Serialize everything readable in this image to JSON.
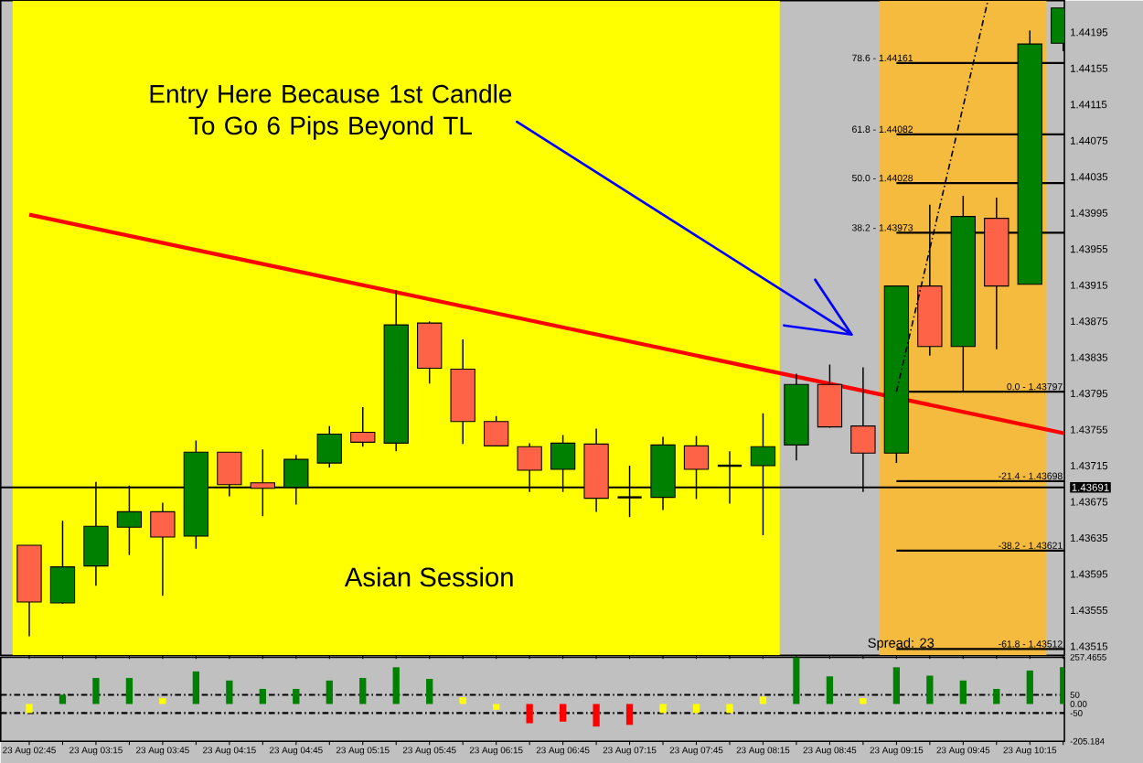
{
  "chart_data": [
    {
      "type": "candlestick",
      "categories": [
        "23 Aug 02:45",
        null,
        "23 Aug 03:15",
        null,
        "23 Aug 03:45",
        null,
        "23 Aug 04:15",
        null,
        "23 Aug 04:45",
        null,
        "23 Aug 05:15",
        null,
        "23 Aug 05:45",
        null,
        "23 Aug 06:15",
        null,
        "23 Aug 06:45",
        null,
        "23 Aug 07:15",
        null,
        "23 Aug 07:45",
        null,
        "23 Aug 08:15",
        null,
        "23 Aug 08:45",
        null,
        "23 Aug 09:15",
        null,
        "23 Aug 09:45",
        null,
        "23 Aug 10:15",
        null
      ],
      "ohlc": [
        [
          1.43627,
          1.43627,
          1.43526,
          1.43564
        ],
        [
          1.43563,
          1.43654,
          1.43562,
          1.43603
        ],
        [
          1.43604,
          1.43697,
          1.43582,
          1.43648
        ],
        [
          1.43647,
          1.43693,
          1.43616,
          1.43664
        ],
        [
          1.43664,
          1.43674,
          1.43571,
          1.43636
        ],
        [
          1.43637,
          1.43743,
          1.43623,
          1.4373
        ],
        [
          1.4373,
          1.4373,
          1.43681,
          1.43694
        ],
        [
          1.43696,
          1.43733,
          1.43659,
          1.4369
        ],
        [
          1.43691,
          1.43727,
          1.43672,
          1.43722
        ],
        [
          1.43718,
          1.43759,
          1.43713,
          1.4375
        ],
        [
          1.43752,
          1.4378,
          1.43736,
          1.43741
        ],
        [
          1.4374,
          1.43909,
          1.43731,
          1.43871
        ],
        [
          1.43873,
          1.43875,
          1.43806,
          1.43823
        ],
        [
          1.43822,
          1.43855,
          1.43739,
          1.43764
        ],
        [
          1.43764,
          1.4377,
          1.43737,
          1.43737
        ],
        [
          1.43736,
          1.4374,
          1.43686,
          1.4371
        ],
        [
          1.43711,
          1.43749,
          1.43686,
          1.4374
        ],
        [
          1.43739,
          1.43756,
          1.43664,
          1.43679
        ],
        [
          1.4368,
          1.43715,
          1.43658,
          1.4368
        ],
        [
          1.4368,
          1.43747,
          1.43666,
          1.43738
        ],
        [
          1.43737,
          1.43748,
          1.43678,
          1.43711
        ],
        [
          1.43715,
          1.43731,
          1.43673,
          1.43715
        ],
        [
          1.43715,
          1.43773,
          1.43638,
          1.43736
        ],
        [
          1.43738,
          1.43817,
          1.43721,
          1.43805
        ],
        [
          1.43805,
          1.43827,
          1.43757,
          1.43758
        ],
        [
          1.43759,
          1.43824,
          1.43686,
          1.43729
        ],
        [
          1.43729,
          1.43914,
          1.43718,
          1.43914
        ],
        [
          1.43914,
          1.44004,
          1.43837,
          1.43847
        ],
        [
          1.43847,
          1.44014,
          1.43798,
          1.43991
        ],
        [
          1.43989,
          1.44012,
          1.43844,
          1.43914
        ],
        [
          1.43916,
          1.44197,
          1.43916,
          1.44182
        ],
        [
          1.44183,
          1.44222,
          1.44174,
          1.44222
        ]
      ],
      "colors": [
        "#ff6347",
        "#008000",
        "#008000",
        "#008000",
        "#ff6347",
        "#008000",
        "#ff6347",
        "#ff6347",
        "#008000",
        "#008000",
        "#ff6347",
        "#008000",
        "#ff6347",
        "#ff6347",
        "#ff6347",
        "#ff6347",
        "#008000",
        "#ff6347",
        "#000000",
        "#008000",
        "#ff6347",
        "#000000",
        "#008000",
        "#008000",
        "#ff6347",
        "#ff6347",
        "#008000",
        "#ff6347",
        "#008000",
        "#ff6347",
        "#008000",
        "#008000"
      ],
      "ylim": [
        1.43505,
        1.4423
      ],
      "yticks": [
        1.43515,
        1.43555,
        1.43595,
        1.43635,
        1.43675,
        1.43715,
        1.43755,
        1.43795,
        1.43835,
        1.43875,
        1.43915,
        1.43955,
        1.43995,
        1.44035,
        1.44075,
        1.44115,
        1.44155,
        1.44195,
        {
          "value": 1.43691,
          "label": "1.43691"
        }
      ],
      "tick_labels": "y",
      "series": [
        {
          "type": "line",
          "color": "#ff0000",
          "x": [
            "23 Aug 02:45",
            "23 Aug 10:15"
          ],
          "values": [
            1.43993,
            1.43759
          ]
        },
        {
          "type": "line",
          "color": "#000000",
          "line_style": "dashed",
          "x": [
            "23 Aug 09:15",
            "23 Aug 09:45"
          ],
          "values": [
            1.43797,
            1.44113
          ]
        }
      ],
      "bands": [
        {
          "axis": "x",
          "from": "23 Aug 02:45",
          "to": "23 Aug 08:15",
          "label": "Asian Session",
          "color": "#ffff00"
        },
        {
          "axis": "x",
          "from": "23 Aug 09:15",
          "to": "23 Aug 10:15",
          "color": "#f5bb3f"
        }
      ],
      "ref_lines": [
        {
          "axis": "y",
          "value": 1.43691,
          "color": "#000000"
        },
        {
          "axis": "y",
          "value": 1.44161,
          "color": "#000000"
        },
        {
          "axis": "y",
          "value": 1.44082,
          "color": "#000000"
        },
        {
          "axis": "y",
          "value": 1.44028,
          "color": "#000000"
        },
        {
          "axis": "y",
          "value": 1.43973,
          "color": "#000000"
        },
        {
          "axis": "y",
          "value": 1.43797,
          "color": "#000000"
        },
        {
          "axis": "y",
          "value": 1.43698,
          "color": "#000000"
        },
        {
          "axis": "y",
          "value": 1.43621,
          "color": "#000000"
        },
        {
          "axis": "y",
          "value": 1.43512,
          "color": "#000000"
        }
      ],
      "annotations": [
        "Entry Here Because 1st Candle To Go 6 Pips Beyond TL",
        "Spread: 23",
        {
          "text": "78.6 - 1.44161",
          "x": "23 Aug 09:15",
          "y": 1.44161
        },
        {
          "text": "61.8 - 1.44082",
          "x": "23 Aug 09:15",
          "y": 1.44082
        },
        {
          "text": "50.0 - 1.44028",
          "x": "23 Aug 09:15",
          "y": 1.44028
        },
        {
          "text": "38.2 - 1.43973",
          "x": "23 Aug 09:15",
          "y": 1.43973
        },
        {
          "text": "0.0 - 1.43797",
          "y": 1.43797
        },
        {
          "text": "-21.4 - 1.43698",
          "y": 1.43698
        },
        {
          "text": "-38.2 - 1.43621",
          "y": 1.43621
        },
        {
          "text": "-61.8 - 1.43512",
          "y": 1.43512
        }
      ]
    },
    {
      "type": "bar",
      "categories": [
        "23 Aug 02:45",
        null,
        "23 Aug 03:15",
        null,
        "23 Aug 03:45",
        null,
        "23 Aug 04:15",
        null,
        "23 Aug 04:45",
        null,
        "23 Aug 05:15",
        null,
        "23 Aug 05:45",
        null,
        "23 Aug 06:15",
        null,
        "23 Aug 06:45",
        null,
        "23 Aug 07:15",
        null,
        "23 Aug 07:45",
        null,
        "23 Aug 08:15",
        null,
        "23 Aug 08:45",
        null,
        "23 Aug 09:15",
        null,
        "23 Aug 09:45",
        null,
        "23 Aug 10:15",
        null
      ],
      "values": [
        -50,
        51,
        143,
        143,
        32,
        179,
        129,
        83,
        83,
        129,
        143,
        202,
        138,
        37,
        -32,
        -106,
        -97,
        -124,
        -115,
        -50,
        -50,
        -50,
        41,
        257,
        152,
        32,
        202,
        156,
        129,
        83,
        184,
        202
      ],
      "colors": [
        "#ffff00",
        "#008000",
        "#008000",
        "#008000",
        "#ffff00",
        "#008000",
        "#008000",
        "#008000",
        "#008000",
        "#008000",
        "#008000",
        "#008000",
        "#008000",
        "#ffff00",
        "#ffff00",
        "#ff0000",
        "#ff0000",
        "#ff0000",
        "#ff0000",
        "#ffff00",
        "#ffff00",
        "#ffff00",
        "#ffff00",
        "#008000",
        "#008000",
        "#ffff00",
        "#008000",
        "#008000",
        "#008000",
        "#008000",
        "#008000",
        "#008000"
      ],
      "ylim": [
        -205.184,
        257.4655
      ],
      "yticks": [
        257.4655,
        50,
        {
          "value": 0,
          "label": "0.00"
        },
        -50,
        -205.184
      ],
      "ref_lines": [
        {
          "axis": "y",
          "value": 50,
          "color": "#000000",
          "line_style": "dashed"
        },
        {
          "axis": "y",
          "value": -50,
          "color": "#000000",
          "line_style": "dashed"
        }
      ]
    }
  ]
}
